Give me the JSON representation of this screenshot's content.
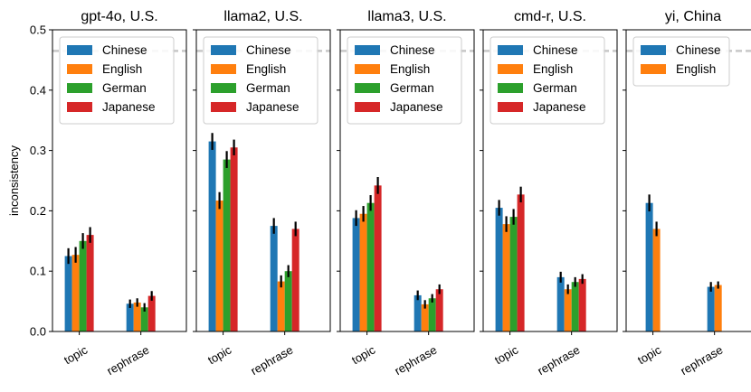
{
  "chart_data": {
    "type": "bar",
    "ylabel": "inconsistency",
    "ylim": [
      0,
      0.5
    ],
    "yticks": [
      "0.0",
      "0.1",
      "0.2",
      "0.3",
      "0.4",
      "0.5"
    ],
    "yticks_values": [
      0,
      0.1,
      0.2,
      0.3,
      0.4,
      0.5
    ],
    "reference_line": 0.465,
    "colors": {
      "Chinese": "#1f77b4",
      "English": "#ff7f0e",
      "German": "#2ca02c",
      "Japanese": "#d62728",
      "error_bar": "#000000",
      "reference_line": "#c8c8c8"
    },
    "panels": [
      {
        "title": "gpt-4o, U.S.",
        "categories": [
          "topic",
          "rephrase"
        ],
        "series": [
          {
            "name": "Chinese",
            "values": [
              0.125,
              0.046
            ],
            "errors": [
              0.013,
              0.007
            ]
          },
          {
            "name": "English",
            "values": [
              0.127,
              0.048
            ],
            "errors": [
              0.013,
              0.007
            ]
          },
          {
            "name": "German",
            "values": [
              0.15,
              0.04
            ],
            "errors": [
              0.013,
              0.007
            ]
          },
          {
            "name": "Japanese",
            "values": [
              0.16,
              0.059
            ],
            "errors": [
              0.013,
              0.008
            ]
          }
        ]
      },
      {
        "title": "llama2, U.S.",
        "categories": [
          "topic",
          "rephrase"
        ],
        "series": [
          {
            "name": "Chinese",
            "values": [
              0.315,
              0.175
            ],
            "errors": [
              0.014,
              0.013
            ]
          },
          {
            "name": "English",
            "values": [
              0.217,
              0.083
            ],
            "errors": [
              0.014,
              0.01
            ]
          },
          {
            "name": "German",
            "values": [
              0.285,
              0.1
            ],
            "errors": [
              0.014,
              0.01
            ]
          },
          {
            "name": "Japanese",
            "values": [
              0.305,
              0.17
            ],
            "errors": [
              0.013,
              0.012
            ]
          }
        ]
      },
      {
        "title": "llama3, U.S.",
        "categories": [
          "topic",
          "rephrase"
        ],
        "series": [
          {
            "name": "Chinese",
            "values": [
              0.188,
              0.06
            ],
            "errors": [
              0.013,
              0.008
            ]
          },
          {
            "name": "English",
            "values": [
              0.195,
              0.045
            ],
            "errors": [
              0.013,
              0.007
            ]
          },
          {
            "name": "German",
            "values": [
              0.213,
              0.055
            ],
            "errors": [
              0.013,
              0.007
            ]
          },
          {
            "name": "Japanese",
            "values": [
              0.242,
              0.07
            ],
            "errors": [
              0.014,
              0.008
            ]
          }
        ]
      },
      {
        "title": "cmd-r, U.S.",
        "categories": [
          "topic",
          "rephrase"
        ],
        "series": [
          {
            "name": "Chinese",
            "values": [
              0.205,
              0.09
            ],
            "errors": [
              0.013,
              0.009
            ]
          },
          {
            "name": "English",
            "values": [
              0.178,
              0.07
            ],
            "errors": [
              0.013,
              0.008
            ]
          },
          {
            "name": "German",
            "values": [
              0.19,
              0.082
            ],
            "errors": [
              0.013,
              0.008
            ]
          },
          {
            "name": "Japanese",
            "values": [
              0.227,
              0.087
            ],
            "errors": [
              0.013,
              0.008
            ]
          }
        ]
      },
      {
        "title": "yi, China",
        "categories": [
          "topic",
          "rephrase"
        ],
        "series": [
          {
            "name": "Chinese",
            "values": [
              0.213,
              0.074
            ],
            "errors": [
              0.014,
              0.008
            ]
          },
          {
            "name": "English",
            "values": [
              0.17,
              0.077
            ],
            "errors": [
              0.012,
              0.006
            ]
          }
        ]
      }
    ]
  }
}
